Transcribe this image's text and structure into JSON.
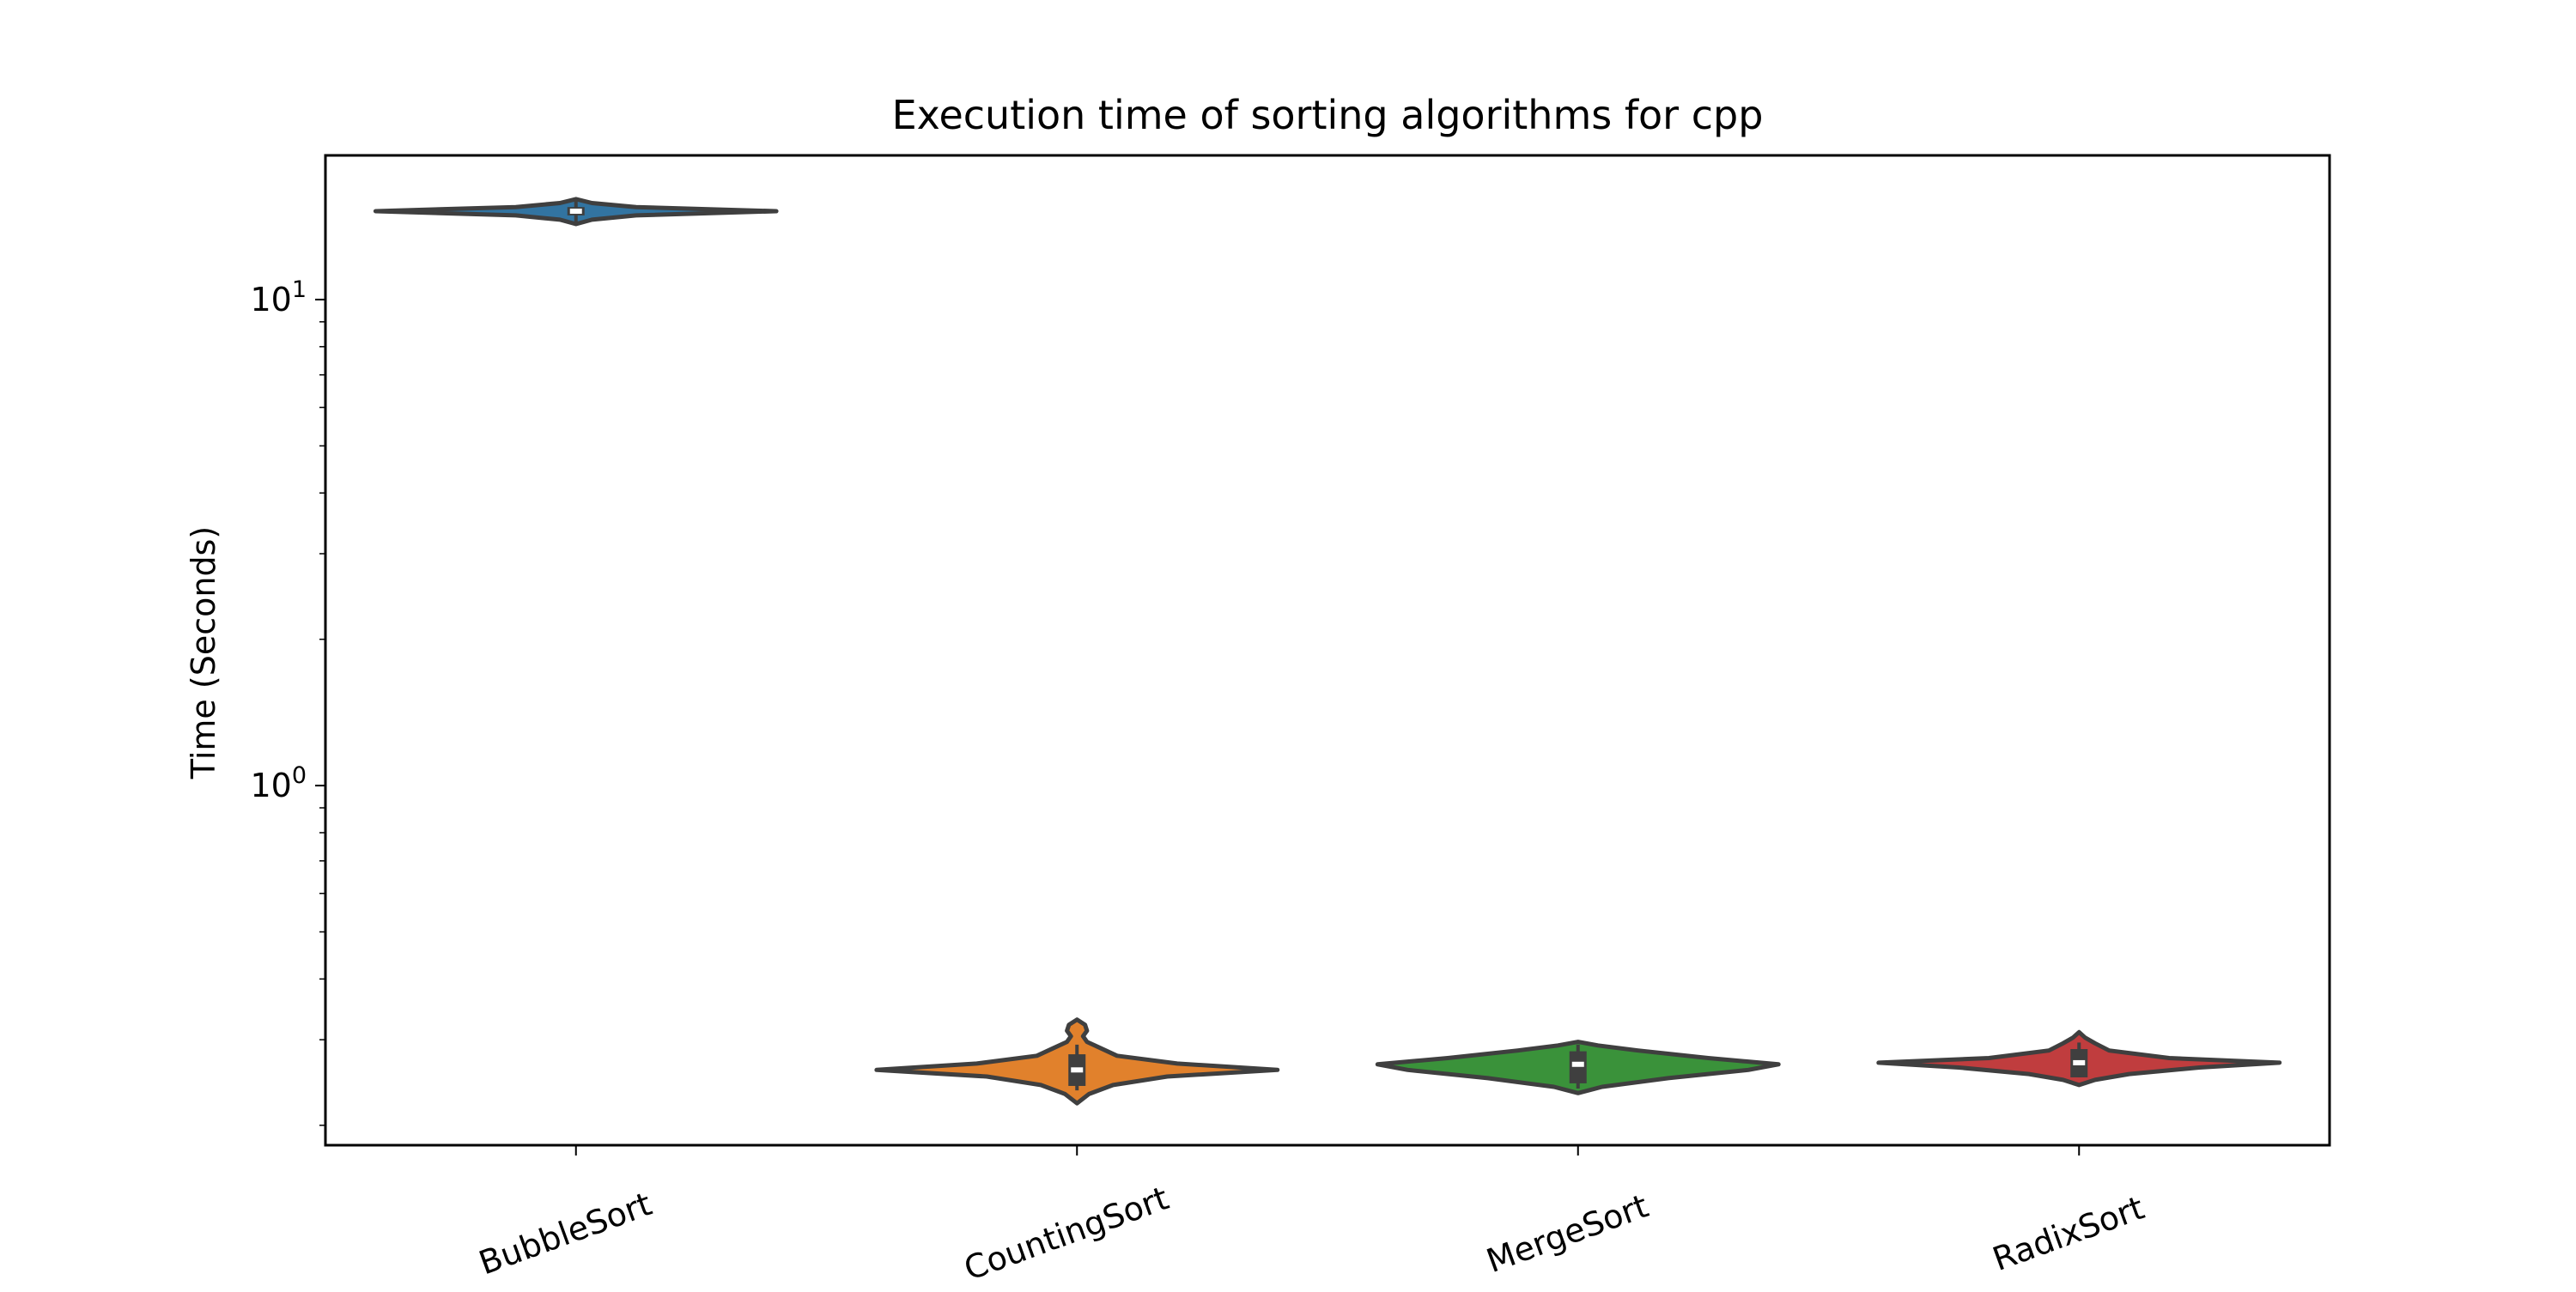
{
  "chart_data": {
    "type": "violin",
    "title": "Execution time of sorting algorithms for cpp",
    "xlabel": "",
    "ylabel": "Time (Seconds)",
    "yscale": "log",
    "ylim": [
      0.182,
      19.8
    ],
    "yticks_major": [
      {
        "value": 1,
        "label_base": "10",
        "label_exp": "0"
      },
      {
        "value": 10,
        "label_base": "10",
        "label_exp": "1"
      }
    ],
    "yticks_minor": [
      0.2,
      0.3,
      0.4,
      0.5,
      0.6,
      0.7,
      0.8,
      0.9,
      2,
      3,
      4,
      5,
      6,
      7,
      8,
      9
    ],
    "categories": [
      "BubbleSort",
      "CountingSort",
      "MergeSort",
      "RadixSort"
    ],
    "legend": "none",
    "grid": false,
    "series": [
      {
        "name": "BubbleSort",
        "color": "#3274a1",
        "min": 14.3,
        "q1": 14.9,
        "median": 15.2,
        "q3": 15.5,
        "max": 16.1,
        "density": [
          [
            14.3,
            0
          ],
          [
            14.6,
            0.08
          ],
          [
            14.9,
            0.3
          ],
          [
            15.2,
            1.0
          ],
          [
            15.5,
            0.3
          ],
          [
            15.8,
            0.08
          ],
          [
            16.1,
            0
          ]
        ]
      },
      {
        "name": "CountingSort",
        "color": "#e1812c",
        "min": 0.222,
        "q1": 0.241,
        "median": 0.26,
        "q3": 0.28,
        "whisker_low": 0.236,
        "whisker_high": 0.293,
        "max": 0.33,
        "density": [
          [
            0.222,
            0
          ],
          [
            0.232,
            0.06
          ],
          [
            0.242,
            0.18
          ],
          [
            0.252,
            0.45
          ],
          [
            0.26,
            1.0
          ],
          [
            0.268,
            0.5
          ],
          [
            0.278,
            0.2
          ],
          [
            0.288,
            0.12
          ],
          [
            0.297,
            0.05
          ],
          [
            0.305,
            0.03
          ],
          [
            0.313,
            0.05
          ],
          [
            0.322,
            0.04
          ],
          [
            0.33,
            0
          ]
        ]
      },
      {
        "name": "MergeSort",
        "color": "#3a923a",
        "min": 0.233,
        "q1": 0.244,
        "median": 0.267,
        "q3": 0.284,
        "whisker_low": 0.238,
        "whisker_high": 0.293,
        "max": 0.297,
        "density": [
          [
            0.233,
            0
          ],
          [
            0.24,
            0.12
          ],
          [
            0.25,
            0.45
          ],
          [
            0.26,
            0.85
          ],
          [
            0.267,
            1.0
          ],
          [
            0.275,
            0.65
          ],
          [
            0.285,
            0.3
          ],
          [
            0.292,
            0.1
          ],
          [
            0.297,
            0
          ]
        ]
      },
      {
        "name": "RadixSort",
        "color": "#c03d3e",
        "min": 0.242,
        "q1": 0.251,
        "median": 0.269,
        "q3": 0.287,
        "whisker_low": 0.251,
        "whisker_high": 0.296,
        "max": 0.311,
        "density": [
          [
            0.242,
            0
          ],
          [
            0.248,
            0.08
          ],
          [
            0.255,
            0.25
          ],
          [
            0.263,
            0.6
          ],
          [
            0.269,
            1.0
          ],
          [
            0.275,
            0.45
          ],
          [
            0.285,
            0.15
          ],
          [
            0.295,
            0.08
          ],
          [
            0.303,
            0.03
          ],
          [
            0.311,
            0
          ]
        ]
      }
    ]
  }
}
